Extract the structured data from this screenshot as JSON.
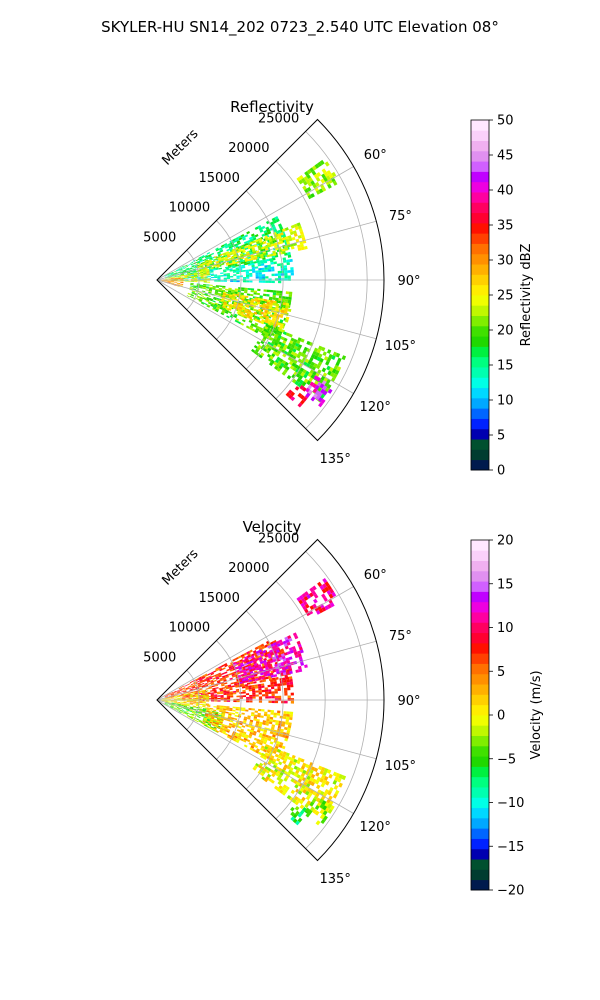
{
  "figure": {
    "suptitle": "SKYLER-HU  SN14_202  0723_2.540 UTC Elevation 08°"
  },
  "chart_data": [
    {
      "type": "heatmap",
      "projection": "polar-sector",
      "title": "Reflectivity",
      "radial_label": "Meters",
      "radial_ticks": [
        "5000",
        "10000",
        "15000",
        "20000",
        "25000"
      ],
      "radial_tick_values": [
        5000,
        10000,
        15000,
        20000,
        25000
      ],
      "rmax": 27000,
      "theta_range_deg": [
        45,
        135
      ],
      "theta_tick_values": [
        60,
        75,
        90,
        105,
        120,
        135
      ],
      "theta_ticks": [
        "60°",
        "75°",
        "90°",
        "105°",
        "120°",
        "135°"
      ],
      "grid": true,
      "colorbar": {
        "label": "Reflectivity dBZ",
        "min": 0,
        "max": 50,
        "tick_values": [
          0,
          5,
          10,
          15,
          20,
          25,
          30,
          35,
          40,
          45,
          50
        ],
        "ticks": [
          "0",
          "5",
          "10",
          "15",
          "20",
          "25",
          "30",
          "35",
          "40",
          "45",
          "50"
        ],
        "colors": [
          "#001a4d",
          "#003c30",
          "#00502f",
          "#0000b0",
          "#0022ff",
          "#0066ff",
          "#00a8ff",
          "#00d8ff",
          "#00ffe6",
          "#00ffb0",
          "#00ff80",
          "#00f040",
          "#20d800",
          "#40e000",
          "#80ee00",
          "#c0f800",
          "#f0ff00",
          "#ffee00",
          "#ffd000",
          "#ffb000",
          "#ff9000",
          "#ff7000",
          "#ff4000",
          "#ff1000",
          "#ff0030",
          "#ff0060",
          "#ff00a0",
          "#ee00e0",
          "#c000ff",
          "#d060ff",
          "#e090f0",
          "#f0b0f0",
          "#fad0fa",
          "#ffe8ff"
        ]
      },
      "echo_regions": [
        {
          "r0": 20500,
          "r1": 24500,
          "t0": 54,
          "t1": 61,
          "value": 22
        },
        {
          "r0": 1000,
          "r1": 16000,
          "t0": 62,
          "t1": 80,
          "value": 16
        },
        {
          "r0": 5000,
          "r1": 18000,
          "t0": 68,
          "t1": 78,
          "value": 24
        },
        {
          "r0": 3000,
          "r1": 16000,
          "t0": 80,
          "t1": 91,
          "value": 13
        },
        {
          "r0": 1000,
          "r1": 6000,
          "t0": 78,
          "t1": 92,
          "value": 24
        },
        {
          "r0": 500,
          "r1": 3000,
          "t0": 84,
          "t1": 106,
          "value": 30
        },
        {
          "r0": 4000,
          "r1": 16000,
          "t0": 95,
          "t1": 118,
          "value": 20
        },
        {
          "r0": 8000,
          "r1": 16000,
          "t0": 100,
          "t1": 112,
          "value": 26
        },
        {
          "r0": 14000,
          "r1": 24000,
          "t0": 112,
          "t1": 126,
          "value": 20
        },
        {
          "r0": 20500,
          "r1": 22500,
          "t0": 126,
          "t1": 131,
          "value": 36
        },
        {
          "r0": 22000,
          "r1": 24500,
          "t0": 121,
          "t1": 127,
          "value": 42
        }
      ]
    },
    {
      "type": "heatmap",
      "projection": "polar-sector",
      "title": "Velocity",
      "radial_label": "Meters",
      "radial_ticks": [
        "5000",
        "10000",
        "15000",
        "20000",
        "25000"
      ],
      "radial_tick_values": [
        5000,
        10000,
        15000,
        20000,
        25000
      ],
      "rmax": 27000,
      "theta_range_deg": [
        45,
        135
      ],
      "theta_tick_values": [
        60,
        75,
        90,
        105,
        120,
        135
      ],
      "theta_ticks": [
        "60°",
        "75°",
        "90°",
        "105°",
        "120°",
        "135°"
      ],
      "grid": true,
      "colorbar": {
        "label": "Velocity (m/s)",
        "min": -20,
        "max": 20,
        "tick_values": [
          -20,
          -15,
          -10,
          -5,
          0,
          5,
          10,
          15,
          20
        ],
        "ticks": [
          "−20",
          "−15",
          "−10",
          "−5",
          "0",
          "5",
          "10",
          "15",
          "20"
        ],
        "colors": [
          "#001a4d",
          "#003c30",
          "#00502f",
          "#0000b0",
          "#0022ff",
          "#0066ff",
          "#00a8ff",
          "#00d8ff",
          "#00ffe6",
          "#00ffb0",
          "#00ff80",
          "#00f040",
          "#20d800",
          "#40e000",
          "#80ee00",
          "#c0f800",
          "#f0ff00",
          "#ffee00",
          "#ffd000",
          "#ffb000",
          "#ff9000",
          "#ff7000",
          "#ff4000",
          "#ff1000",
          "#ff0030",
          "#ff0060",
          "#ff00a0",
          "#ee00e0",
          "#c000ff",
          "#d060ff",
          "#e090f0",
          "#f0b0f0",
          "#fad0fa",
          "#ffe8ff"
        ]
      },
      "echo_regions": [
        {
          "r0": 20500,
          "r1": 24500,
          "t0": 54,
          "t1": 61,
          "value": 10
        },
        {
          "r0": 1000,
          "r1": 16000,
          "t0": 62,
          "t1": 80,
          "value": 7
        },
        {
          "r0": 10000,
          "r1": 18000,
          "t0": 64,
          "t1": 78,
          "value": 12
        },
        {
          "r0": 3000,
          "r1": 16000,
          "t0": 80,
          "t1": 91,
          "value": 7
        },
        {
          "r0": 500,
          "r1": 6000,
          "t0": 78,
          "t1": 100,
          "value": 1
        },
        {
          "r0": 1000,
          "r1": 8000,
          "t0": 100,
          "t1": 118,
          "value": -4
        },
        {
          "r0": 6000,
          "r1": 16000,
          "t0": 95,
          "t1": 118,
          "value": 2
        },
        {
          "r0": 14000,
          "r1": 24000,
          "t0": 112,
          "t1": 126,
          "value": 0
        },
        {
          "r0": 20500,
          "r1": 22500,
          "t0": 126,
          "t1": 131,
          "value": -6
        },
        {
          "r0": 22000,
          "r1": 24500,
          "t0": 121,
          "t1": 127,
          "value": -3
        }
      ]
    }
  ]
}
